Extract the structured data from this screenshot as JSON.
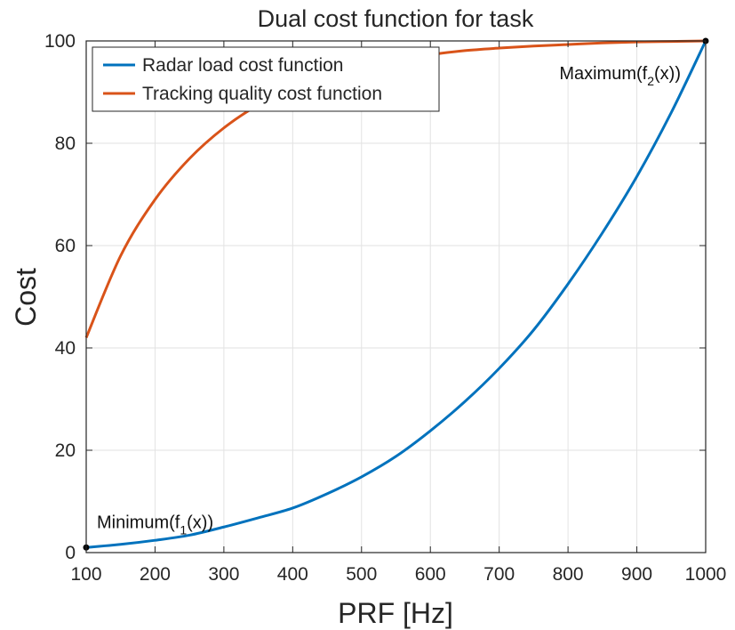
{
  "chart_data": {
    "type": "line",
    "title": "Dual cost function for task",
    "xlabel": "PRF [Hz]",
    "ylabel": "Cost",
    "xlim": [
      100,
      1000
    ],
    "ylim": [
      0,
      100
    ],
    "xticks": [
      100,
      200,
      300,
      400,
      500,
      600,
      700,
      800,
      900,
      1000
    ],
    "yticks": [
      0,
      20,
      40,
      60,
      80,
      100
    ],
    "grid": true,
    "legend_position": "top-left",
    "series": [
      {
        "name": "Radar load cost function",
        "color": "#0072BD",
        "x": [
          100,
          150,
          200,
          250,
          300,
          350,
          400,
          450,
          500,
          550,
          600,
          650,
          700,
          750,
          800,
          850,
          900,
          950,
          1000
        ],
        "y": [
          1,
          1.6,
          2.4,
          3.4,
          5,
          6.8,
          8.7,
          11.5,
          14.8,
          18.8,
          23.8,
          29.5,
          36,
          43.5,
          52.5,
          62.5,
          73.5,
          86,
          100
        ]
      },
      {
        "name": "Tracking quality cost function",
        "color": "#D95319",
        "x": [
          100,
          150,
          200,
          250,
          300,
          350,
          400,
          450,
          500,
          550,
          600,
          650,
          700,
          750,
          800,
          850,
          900,
          950,
          1000
        ],
        "y": [
          42,
          58,
          69,
          77,
          83,
          87.5,
          90.8,
          93.2,
          95,
          96.3,
          97.3,
          98.1,
          98.6,
          99,
          99.3,
          99.6,
          99.8,
          99.9,
          100
        ]
      }
    ],
    "annotations": [
      {
        "x": 100,
        "y": 1,
        "main": "Minimum(f",
        "sub": "1",
        "tail": "(x))"
      },
      {
        "x": 1000,
        "y": 100,
        "main": "Maximum(f",
        "sub": "2",
        "tail": "(x))"
      }
    ]
  }
}
